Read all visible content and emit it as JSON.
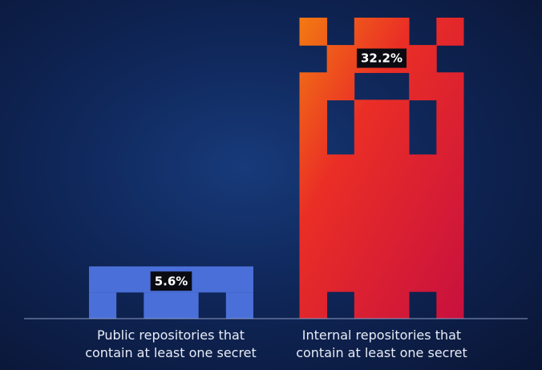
{
  "chart_data": {
    "type": "bar",
    "categories": [
      "Public repositories that contain at least one secret",
      "Internal repositories that contain at least one secret"
    ],
    "values": [
      5.6,
      32.2
    ],
    "value_labels": [
      "5.6%",
      "32.2%"
    ],
    "colors": [
      "#4a6fd8",
      "#e8262e"
    ]
  }
}
